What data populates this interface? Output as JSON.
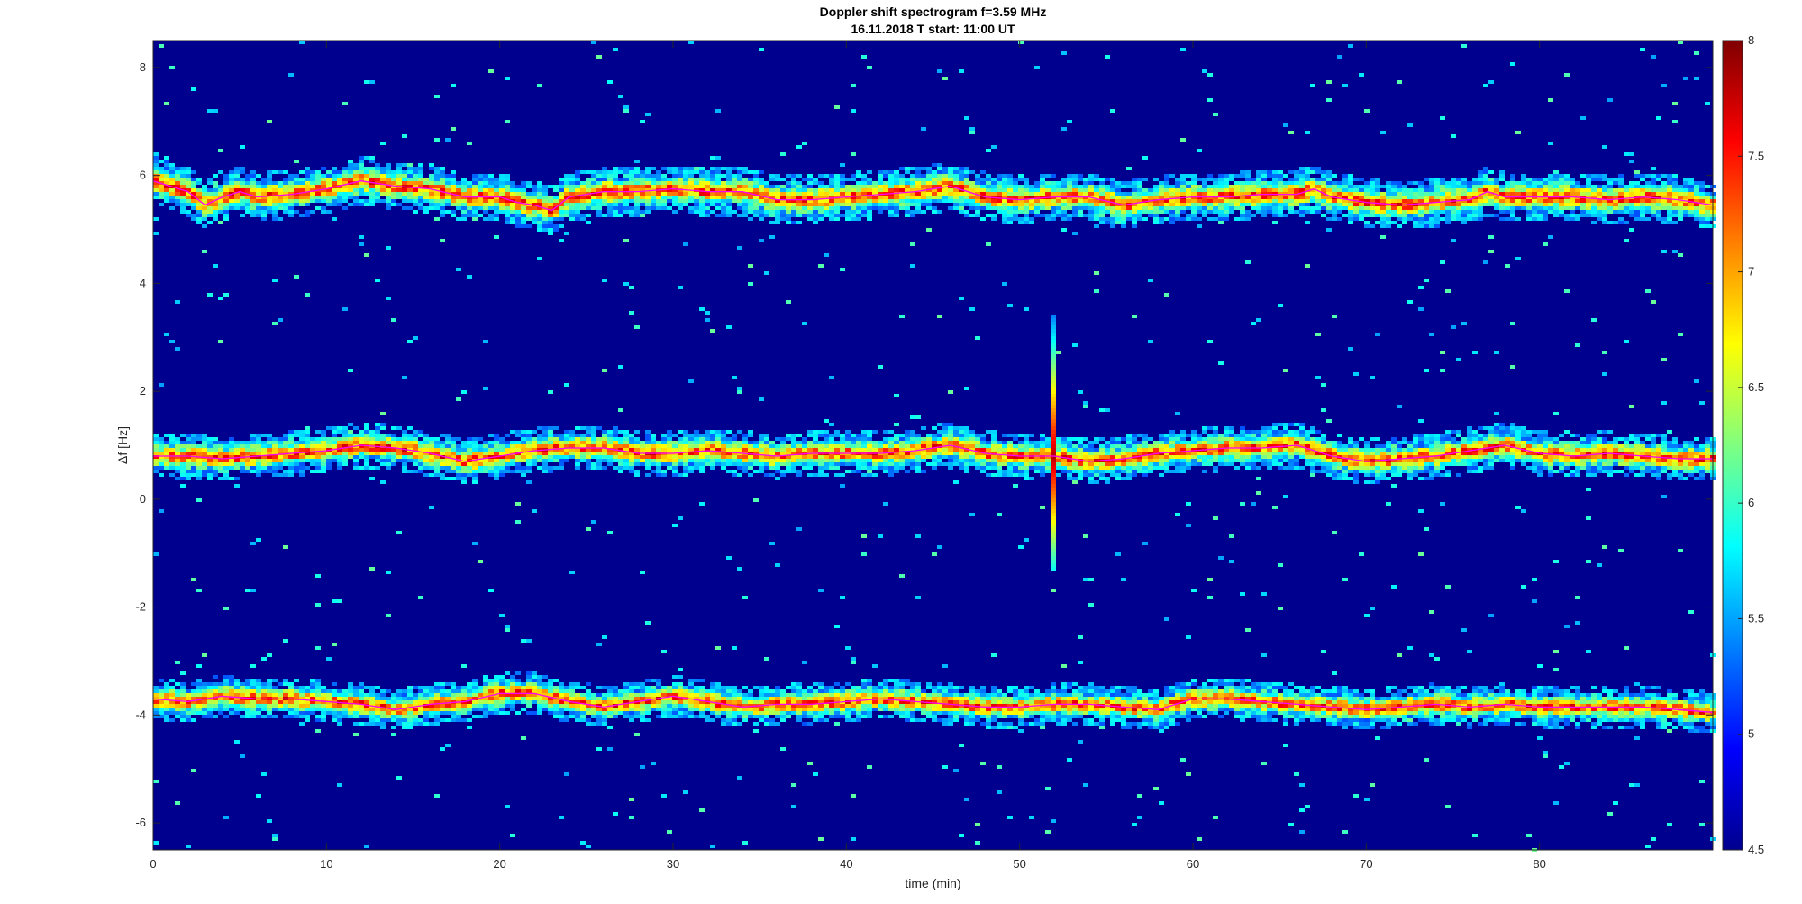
{
  "chart_data": {
    "type": "heatmap",
    "title_line1": "Doppler shift spectrogram f=3.59 MHz",
    "title_line2": "16.11.2018   T start: 11:00 UT",
    "xlabel": "time (min)",
    "ylabel": "Δf [Hz]",
    "xlim": [
      0,
      90
    ],
    "ylim": [
      -6.5,
      8.5
    ],
    "x_ticks": [
      0,
      10,
      20,
      30,
      40,
      50,
      60,
      70,
      80
    ],
    "y_ticks": [
      -6,
      -4,
      -2,
      0,
      2,
      4,
      6,
      8
    ],
    "colorbar": {
      "colormap": "jet",
      "clim": [
        4.5,
        8
      ],
      "ticks": [
        "4.5",
        "5",
        "5.5",
        "6",
        "6.5",
        "7",
        "7.5",
        "8"
      ]
    },
    "traced_line_color": "#ff00ff",
    "traces": [
      {
        "x": [
          0,
          1,
          2,
          3,
          4,
          5,
          6,
          8,
          10,
          12,
          14,
          16,
          18,
          20,
          21,
          22,
          23,
          24,
          26,
          28,
          30,
          32,
          34,
          36,
          38,
          40,
          42,
          44,
          46,
          48,
          50,
          52,
          54,
          56,
          58,
          60,
          62,
          64,
          66,
          67,
          68,
          70,
          72,
          74,
          76,
          77,
          78,
          80,
          82,
          84,
          86,
          88,
          90
        ],
        "y": [
          5.9,
          5.8,
          5.7,
          5.45,
          5.6,
          5.7,
          5.6,
          5.65,
          5.75,
          5.9,
          5.8,
          5.75,
          5.6,
          5.6,
          5.5,
          5.45,
          5.35,
          5.6,
          5.7,
          5.7,
          5.75,
          5.7,
          5.7,
          5.55,
          5.55,
          5.6,
          5.65,
          5.7,
          5.8,
          5.6,
          5.55,
          5.6,
          5.6,
          5.45,
          5.55,
          5.6,
          5.6,
          5.65,
          5.65,
          5.75,
          5.6,
          5.5,
          5.45,
          5.5,
          5.55,
          5.7,
          5.6,
          5.6,
          5.6,
          5.55,
          5.6,
          5.55,
          5.45
        ]
      },
      {
        "x": [
          0,
          2,
          4,
          6,
          8,
          10,
          12,
          14,
          16,
          18,
          20,
          22,
          24,
          26,
          28,
          30,
          32,
          34,
          36,
          38,
          40,
          42,
          44,
          46,
          48,
          50,
          52,
          54,
          56,
          58,
          60,
          62,
          64,
          66,
          68,
          70,
          72,
          74,
          76,
          78,
          80,
          82,
          84,
          86,
          88,
          90
        ],
        "y": [
          0.8,
          0.8,
          0.75,
          0.8,
          0.85,
          0.9,
          1.0,
          0.95,
          0.85,
          0.7,
          0.8,
          0.9,
          0.95,
          0.95,
          0.85,
          0.85,
          0.9,
          0.85,
          0.8,
          0.85,
          0.85,
          0.85,
          0.9,
          1.0,
          0.85,
          0.8,
          0.8,
          0.7,
          0.75,
          0.85,
          0.9,
          0.95,
          0.95,
          1.0,
          0.8,
          0.7,
          0.75,
          0.8,
          0.9,
          1.0,
          0.85,
          0.8,
          0.85,
          0.8,
          0.75,
          0.75
        ]
      },
      {
        "x": [
          0,
          2,
          4,
          6,
          8,
          10,
          12,
          14,
          16,
          18,
          20,
          22,
          24,
          26,
          28,
          30,
          32,
          34,
          36,
          38,
          40,
          42,
          44,
          46,
          48,
          50,
          52,
          54,
          56,
          58,
          60,
          62,
          64,
          66,
          68,
          70,
          72,
          74,
          76,
          78,
          80,
          82,
          84,
          86,
          88,
          90
        ],
        "y": [
          -3.7,
          -3.75,
          -3.65,
          -3.7,
          -3.7,
          -3.75,
          -3.8,
          -3.9,
          -3.8,
          -3.75,
          -3.6,
          -3.6,
          -3.75,
          -3.85,
          -3.75,
          -3.65,
          -3.75,
          -3.85,
          -3.8,
          -3.8,
          -3.75,
          -3.7,
          -3.75,
          -3.8,
          -3.85,
          -3.85,
          -3.8,
          -3.8,
          -3.85,
          -3.9,
          -3.7,
          -3.7,
          -3.75,
          -3.8,
          -3.85,
          -3.9,
          -3.85,
          -3.8,
          -3.85,
          -3.8,
          -3.85,
          -3.85,
          -3.85,
          -3.85,
          -3.9,
          -3.95
        ]
      }
    ],
    "impulse": {
      "x": 52,
      "y_min": -1.3,
      "y_max": 3.4
    }
  }
}
